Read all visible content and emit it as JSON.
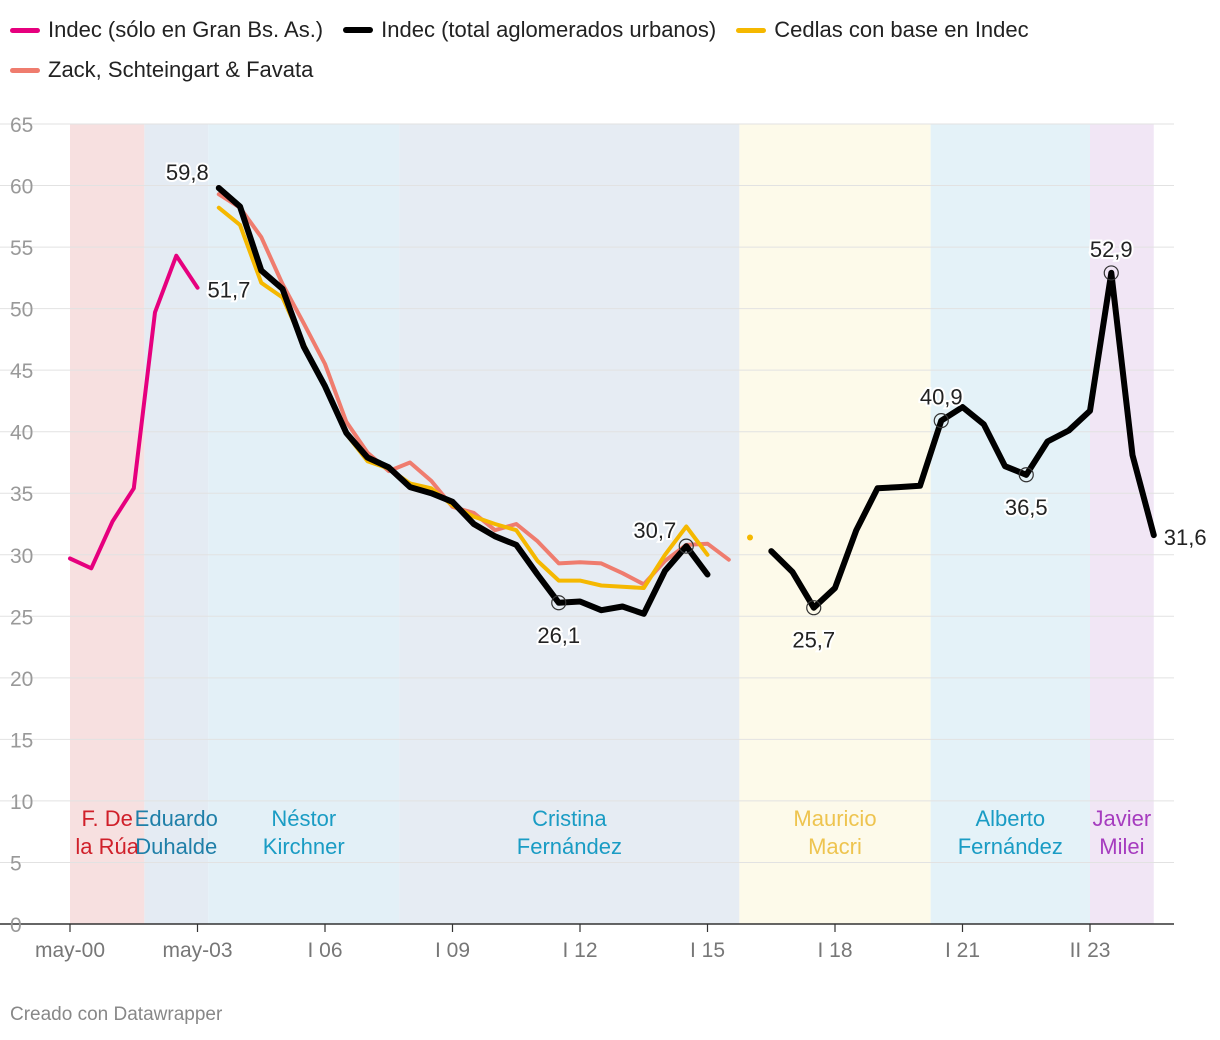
{
  "legend": {
    "items": [
      {
        "label": "Indec (sólo en Gran Bs. As.)",
        "color": "#e6007e"
      },
      {
        "label": "Indec (total aglomerados urbanos)",
        "color": "#000000"
      },
      {
        "label": "Cedlas con base en Indec",
        "color": "#f5b800"
      },
      {
        "label": "Zack, Schteingart & Favata",
        "color": "#ef7c6e"
      }
    ]
  },
  "footer": {
    "credit": "Creado con Datawrapper"
  },
  "chart_data": {
    "type": "line",
    "title": "",
    "xlabel": "",
    "ylabel": "",
    "x_index_range": [
      0,
      48
    ],
    "ylim": [
      0,
      65
    ],
    "y_ticks": [
      0,
      5,
      10,
      15,
      20,
      25,
      30,
      35,
      40,
      45,
      50,
      55,
      60,
      65
    ],
    "grid": true,
    "x_tick_labels": [
      {
        "label": "may-00",
        "x": 0
      },
      {
        "label": "may-03",
        "x": 6
      },
      {
        "label": "I 06",
        "x": 12
      },
      {
        "label": "I 09",
        "x": 18
      },
      {
        "label": "I 12",
        "x": 24
      },
      {
        "label": "I 15",
        "x": 30
      },
      {
        "label": "I 18",
        "x": 36
      },
      {
        "label": "I 21",
        "x": 42
      },
      {
        "label": "II 23",
        "x": 48
      }
    ],
    "periods": [
      {
        "label": "F. De la Rúa",
        "lines": [
          "F. De",
          "la Rúa"
        ],
        "start": 0,
        "end": 3.5,
        "bg": "#f7e0e0",
        "text_color": "#d0202a"
      },
      {
        "label": "Eduardo Duhalde",
        "lines": [
          "Eduardo",
          "Duhalde"
        ],
        "start": 3.5,
        "end": 6.5,
        "bg": "#e4ebf3",
        "text_color": "#1f7fa8"
      },
      {
        "label": "Néstor Kirchner",
        "lines": [
          "Néstor",
          "Kirchner"
        ],
        "start": 6.5,
        "end": 15.5,
        "bg": "#e3f0f7",
        "text_color": "#1a9cc4"
      },
      {
        "label": "Cristina Fernández",
        "lines": [
          "Cristina",
          "Fernández"
        ],
        "start": 15.5,
        "end": 31.5,
        "bg": "#e6ecf3",
        "text_color": "#1a9cc4"
      },
      {
        "label": "Mauricio Macri",
        "lines": [
          "Mauricio",
          "Macri"
        ],
        "start": 31.5,
        "end": 40.5,
        "bg": "#fdfaea",
        "text_color": "#eec44f"
      },
      {
        "label": "Alberto Fernández",
        "lines": [
          "Alberto",
          "Fernández"
        ],
        "start": 40.5,
        "end": 48,
        "bg": "#e4f2f8",
        "text_color": "#1a9cc4"
      },
      {
        "label": "Javier Milei",
        "lines": [
          "Javier",
          "Milei"
        ],
        "start": 48,
        "end": 51,
        "bg": "#f1e6f5",
        "text_color": "#a63cbf"
      }
    ],
    "series": [
      {
        "name": "Indec (sólo en Gran Bs. As.)",
        "color": "#e6007e",
        "x": [
          0,
          1,
          2,
          3,
          4,
          5,
          6
        ],
        "values": [
          29.7,
          28.9,
          32.7,
          35.4,
          49.7,
          54.3,
          51.7
        ]
      },
      {
        "name": "Zack, Schteingart & Favata",
        "color": "#ef7c6e",
        "x": [
          7,
          8,
          9,
          10,
          11,
          12,
          13,
          14,
          15,
          16,
          17,
          18,
          19,
          20,
          21,
          22,
          23,
          24,
          25,
          26,
          27,
          28,
          29,
          30,
          31
        ],
        "values": [
          59.3,
          58.2,
          55.8,
          52.0,
          48.8,
          45.5,
          40.8,
          38.3,
          36.8,
          37.5,
          36.0,
          33.9,
          33.4,
          32.0,
          32.5,
          31.1,
          29.3,
          29.4,
          29.3,
          28.5,
          27.6,
          29.5,
          30.8,
          30.9,
          29.6
        ]
      },
      {
        "name": "Cedlas con base en Indec",
        "color": "#f5b800",
        "x": [
          7,
          8,
          9,
          10,
          11,
          12,
          13,
          14,
          15,
          16,
          17,
          18,
          19,
          20,
          21,
          22,
          23,
          24,
          25,
          26,
          27,
          28,
          29,
          30
        ],
        "values": [
          58.2,
          56.8,
          52.1,
          50.9,
          47.1,
          43.6,
          39.8,
          37.6,
          37.0,
          35.8,
          35.4,
          34.0,
          33.1,
          32.5,
          32.0,
          29.5,
          27.9,
          27.9,
          27.5,
          27.4,
          27.3,
          30.0,
          32.3,
          30.0
        ]
      },
      {
        "name": "Cedlas con base en Indec (punto)",
        "color": "#f5b800",
        "x": [
          32
        ],
        "values": [
          31.4
        ]
      },
      {
        "name": "Indec (total aglomerados urbanos)",
        "color": "#000000",
        "x": [
          7,
          8,
          9,
          10,
          11,
          12,
          13,
          14,
          15,
          16,
          17,
          18,
          19,
          20,
          21,
          22,
          23,
          24,
          25,
          26,
          27,
          28,
          29,
          30
        ],
        "values": [
          59.8,
          58.3,
          53.1,
          51.6,
          46.9,
          43.7,
          39.9,
          37.9,
          37.1,
          35.5,
          35.0,
          34.3,
          32.5,
          31.5,
          30.8,
          28.4,
          26.1,
          26.2,
          25.5,
          25.8,
          25.2,
          28.7,
          30.7,
          28.4
        ]
      },
      {
        "name": "Indec (total aglomerados urbanos) 2016+",
        "color": "#000000",
        "x": [
          33,
          34,
          35,
          36,
          37,
          38,
          39,
          40,
          41,
          42,
          43,
          44,
          45,
          46,
          47,
          48,
          49,
          50,
          51
        ],
        "values": [
          30.3,
          28.6,
          25.7,
          27.3,
          32.0,
          35.4,
          35.5,
          35.6,
          40.9,
          42.0,
          40.6,
          37.2,
          36.5,
          39.2,
          40.1,
          41.7,
          52.9,
          38.1,
          31.6
        ]
      }
    ],
    "annotations": [
      {
        "text": "59,8",
        "x": 7,
        "y": 59.8,
        "pos": "left",
        "circle": false
      },
      {
        "text": "51,7",
        "x": 6,
        "y": 51.7,
        "pos": "right",
        "circle": false
      },
      {
        "text": "26,1",
        "x": 23,
        "y": 26.1,
        "pos": "below",
        "circle": true
      },
      {
        "text": "30,7",
        "x": 29,
        "y": 30.7,
        "pos": "left",
        "circle": true
      },
      {
        "text": "25,7",
        "x": 35,
        "y": 25.7,
        "pos": "below",
        "circle": true
      },
      {
        "text": "40,9",
        "x": 41,
        "y": 40.9,
        "pos": "above",
        "circle": true
      },
      {
        "text": "36,5",
        "x": 45,
        "y": 36.5,
        "pos": "below",
        "circle": true
      },
      {
        "text": "52,9",
        "x": 49,
        "y": 52.9,
        "pos": "above",
        "circle": true
      },
      {
        "text": "31,6",
        "x": 51,
        "y": 31.6,
        "pos": "right",
        "circle": false
      }
    ]
  }
}
